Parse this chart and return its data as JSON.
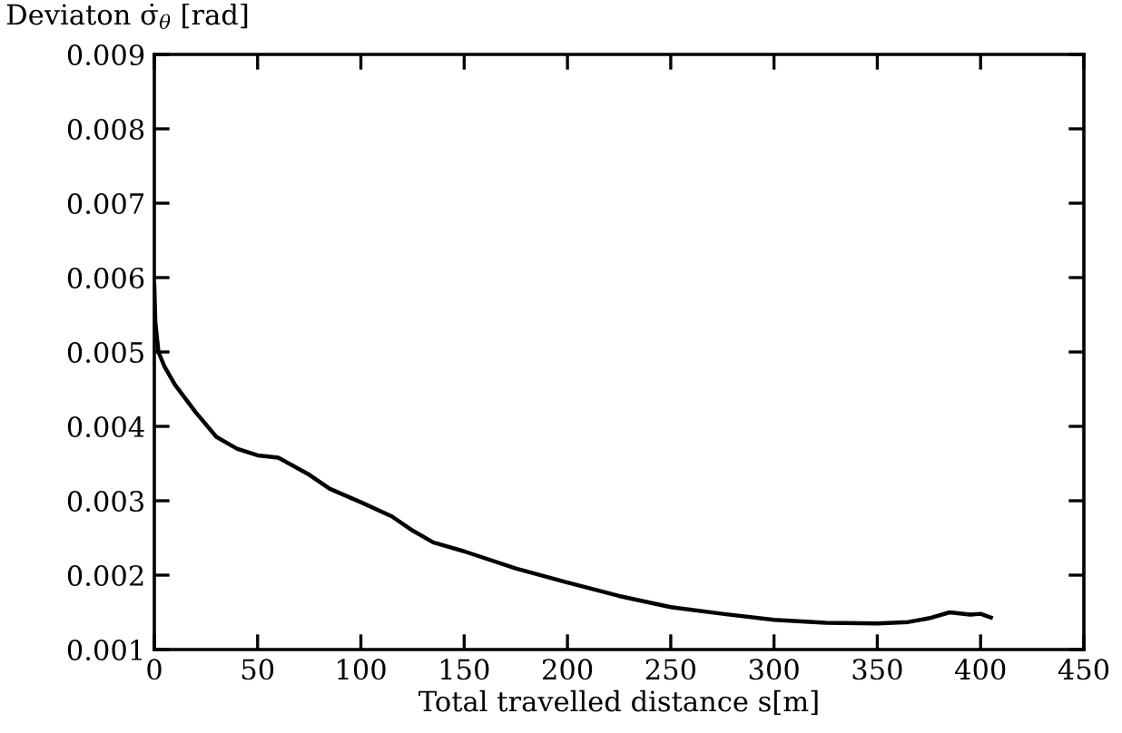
{
  "chart_data": {
    "type": "line",
    "ylabel": "Deviaton σ̇$_{θ}$ [rad]",
    "xlabel": "Total travelled distance s[m]",
    "x": [
      0,
      0.5,
      2,
      5,
      10,
      20,
      30,
      40,
      50,
      60,
      75,
      85,
      100,
      115,
      125,
      135,
      150,
      175,
      200,
      225,
      250,
      275,
      300,
      325,
      350,
      365,
      375,
      385,
      395,
      400,
      405
    ],
    "values": [
      0.0059,
      0.0054,
      0.005,
      0.0048,
      0.00456,
      0.00419,
      0.00386,
      0.0037,
      0.00361,
      0.00358,
      0.00335,
      0.00316,
      0.00298,
      0.00279,
      0.0026,
      0.00244,
      0.00232,
      0.00209,
      0.0019,
      0.00172,
      0.00157,
      0.00148,
      0.0014,
      0.00136,
      0.00135,
      0.00137,
      0.00142,
      0.0015,
      0.00147,
      0.00148,
      0.00143
    ],
    "color": "#000000",
    "xlim": [
      0,
      450
    ],
    "ylim": [
      0.001,
      0.009
    ],
    "xticks": [
      0,
      50,
      100,
      150,
      200,
      250,
      300,
      350,
      400,
      450
    ],
    "yticks": [
      0.001,
      0.002,
      0.003,
      0.004,
      0.005,
      0.006,
      0.007,
      0.008,
      0.009
    ],
    "grid": false,
    "legend": false
  }
}
